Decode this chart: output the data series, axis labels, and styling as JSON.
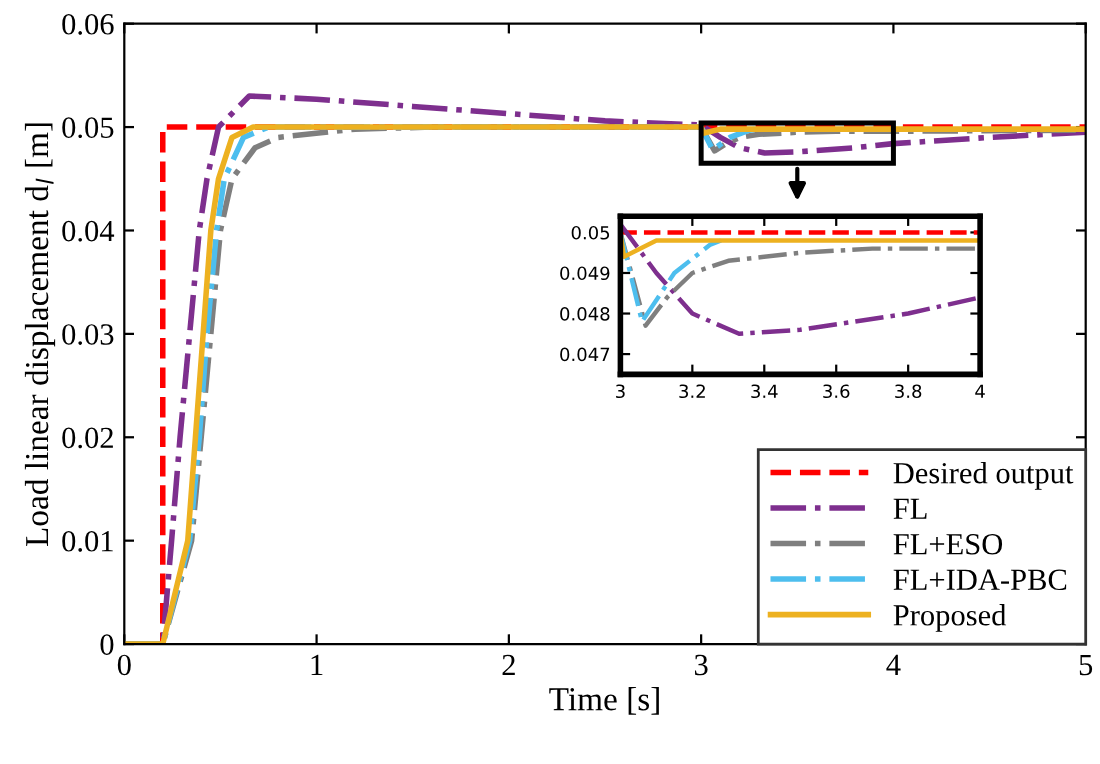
{
  "chart_data": [
    {
      "type": "line",
      "xlabel": "Time [s]",
      "ylabel": "Load linear displacement d$_{l}$ [m]",
      "xlim": [
        0,
        5
      ],
      "ylim": [
        0,
        0.06
      ],
      "xticks": [
        0,
        1,
        2,
        3,
        4,
        5
      ],
      "yticks": [
        0,
        0.01,
        0.02,
        0.03,
        0.04,
        0.05,
        0.06
      ],
      "grid": false,
      "legend": "bottom right",
      "series": [
        {
          "name": "Desired output",
          "color": "#ff0000",
          "line_style": "dashed",
          "x": [
            0,
            0.2,
            0.2,
            5
          ],
          "values": [
            0,
            0,
            0.05,
            0.05
          ]
        },
        {
          "name": "FL",
          "color": "#7e2f8e",
          "line_style": "dashdot",
          "x": [
            0,
            0.2,
            0.246,
            0.29,
            0.34,
            0.39,
            0.43,
            0.49,
            0.65,
            1.0,
            1.5,
            2.0,
            2.5,
            3.0,
            3.1,
            3.2,
            3.33,
            3.5,
            3.8,
            4.0,
            4.5,
            5.0
          ],
          "values": [
            0,
            0,
            0.01,
            0.02,
            0.03,
            0.04,
            0.045,
            0.05,
            0.053,
            0.0527,
            0.052,
            0.0513,
            0.0506,
            0.0502,
            0.049,
            0.048,
            0.0475,
            0.0476,
            0.048,
            0.0484,
            0.049,
            0.0495
          ]
        },
        {
          "name": "FL+ESO",
          "color": "#7f7f7f",
          "line_style": "dashdot",
          "x": [
            0,
            0.2,
            0.35,
            0.4,
            0.45,
            0.5,
            0.56,
            0.68,
            0.8,
            1.2,
            1.6,
            3.0,
            3.07,
            3.13,
            3.2,
            3.3,
            3.5,
            3.7,
            4.0,
            5.0
          ],
          "values": [
            0,
            0,
            0.01,
            0.02,
            0.03,
            0.04,
            0.045,
            0.048,
            0.049,
            0.0498,
            0.05,
            0.05,
            0.0477,
            0.0484,
            0.049,
            0.0493,
            0.0495,
            0.0496,
            0.0496,
            0.0497
          ]
        },
        {
          "name": "FL+IDA-PBC",
          "color": "#4dbeee",
          "line_style": "dashdot",
          "x": [
            0,
            0.2,
            0.34,
            0.39,
            0.43,
            0.48,
            0.52,
            0.62,
            0.75,
            3.0,
            3.06,
            3.15,
            3.25,
            3.28
          ],
          "values": [
            0,
            0,
            0.01,
            0.02,
            0.03,
            0.04,
            0.045,
            0.049,
            0.05,
            0.05,
            0.0478,
            0.049,
            0.0497,
            0.0498
          ]
        },
        {
          "name": "Proposed",
          "color": "#edb120",
          "line_style": "solid",
          "x": [
            0,
            0.2,
            0.33,
            0.37,
            0.41,
            0.45,
            0.49,
            0.56,
            0.67,
            3.0,
            3.01,
            3.1,
            5.0
          ],
          "values": [
            0,
            0,
            0.01,
            0.02,
            0.03,
            0.04,
            0.045,
            0.049,
            0.05,
            0.05,
            0.0494,
            0.0498,
            0.0498
          ]
        }
      ]
    },
    {
      "type": "line",
      "xlim": [
        3,
        4
      ],
      "ylim": [
        0.0465,
        0.0504
      ],
      "xticks": [
        3,
        3.2,
        3.4,
        3.6,
        3.8,
        4
      ],
      "yticks": [
        0.047,
        0.048,
        0.049,
        0.05
      ],
      "grid": false,
      "series": [
        {
          "color": "#ff0000",
          "line_style": "dashed",
          "x": [
            3,
            4
          ],
          "values": [
            0.05,
            0.05
          ]
        },
        {
          "color": "#7e2f8e",
          "line_style": "dashdot",
          "x": [
            3.0,
            3.1,
            3.2,
            3.33,
            3.5,
            3.8,
            4.0
          ],
          "values": [
            0.0502,
            0.049,
            0.048,
            0.0475,
            0.0476,
            0.048,
            0.0484
          ]
        },
        {
          "color": "#7f7f7f",
          "line_style": "dashdot",
          "x": [
            3.0,
            3.07,
            3.13,
            3.2,
            3.3,
            3.5,
            3.7,
            4.0
          ],
          "values": [
            0.05,
            0.0477,
            0.0484,
            0.049,
            0.0493,
            0.0495,
            0.0496,
            0.0496
          ]
        },
        {
          "color": "#4dbeee",
          "line_style": "dashdot",
          "x": [
            3.0,
            3.06,
            3.15,
            3.25,
            3.28
          ],
          "values": [
            0.05,
            0.0478,
            0.049,
            0.0497,
            0.0498
          ]
        },
        {
          "color": "#edb120",
          "line_style": "solid",
          "x": [
            3.0,
            3.01,
            3.1,
            4.0
          ],
          "values": [
            0.05,
            0.0494,
            0.0498,
            0.0498
          ]
        }
      ]
    }
  ]
}
